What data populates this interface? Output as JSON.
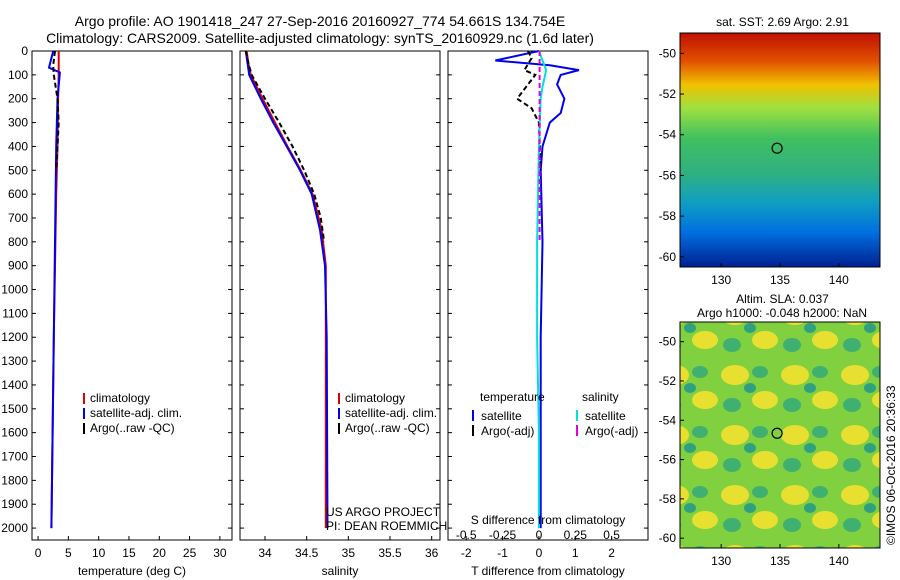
{
  "header": {
    "line1": "Argo profile: AO 1901418_247 27-Sep-2016 20160927_774 54.661S 134.754E",
    "line2": "Climatology: CARS2009. Satellite-adjusted climatology: synTS_20160929.nc (1.6d later)"
  },
  "colors": {
    "climatology": "#e00000",
    "satellite": "#0000ee",
    "argo": "#000000",
    "sal_satellite": "#00e0e0",
    "sal_argo": "#e000e0"
  },
  "chart_data": [
    {
      "type": "line",
      "id": "temperature",
      "xlabel": "temperature (deg C)",
      "ylabel": "",
      "ylim": [
        2050,
        0
      ],
      "xlim": [
        -1,
        32
      ],
      "xticks": [
        0,
        5,
        10,
        15,
        20,
        25,
        30
      ],
      "yticks": [
        0,
        100,
        200,
        300,
        400,
        500,
        600,
        700,
        800,
        900,
        1000,
        1100,
        1200,
        1300,
        1400,
        1500,
        1600,
        1700,
        1800,
        1900,
        2000
      ],
      "legend": [
        "climatology",
        "satellite-adj. clim.",
        "Argo(..raw -QC)"
      ],
      "series": [
        {
          "name": "climatology",
          "color": "#e00000",
          "x": [
            3.4,
            3.4,
            3.3,
            3.2,
            3.0,
            2.8,
            2.6,
            2.4,
            2.2
          ],
          "y": [
            0,
            100,
            200,
            400,
            600,
            900,
            1200,
            1600,
            2000
          ]
        },
        {
          "name": "satellite-adj. clim.",
          "color": "#0000ee",
          "x": [
            2.5,
            1.8,
            3.6,
            3.2,
            3.0,
            2.8,
            2.6,
            2.4,
            2.2
          ],
          "y": [
            0,
            70,
            90,
            200,
            400,
            800,
            1200,
            1600,
            2000
          ]
        },
        {
          "name": "Argo(..raw -QC)",
          "color": "#000000",
          "dash": true,
          "x": [
            2.8,
            2.5,
            2.6,
            3.2,
            3.4,
            3.2,
            3.0
          ],
          "y": [
            0,
            60,
            100,
            200,
            300,
            400,
            500
          ]
        }
      ]
    },
    {
      "type": "line",
      "id": "salinity",
      "xlabel": "salinity",
      "ylabel": "",
      "ylim": [
        2050,
        0
      ],
      "xlim": [
        33.7,
        36.1
      ],
      "xticks": [
        34,
        34.5,
        35,
        35.5,
        36
      ],
      "legend": [
        "climatology",
        "satellite-adj. clim.",
        "Argo(..raw -QC)"
      ],
      "series": [
        {
          "name": "climatology",
          "color": "#e00000",
          "x": [
            33.78,
            33.8,
            33.83,
            33.97,
            34.12,
            34.27,
            34.43,
            34.57,
            34.68,
            34.73,
            34.73,
            34.73
          ],
          "y": [
            0,
            50,
            100,
            200,
            300,
            400,
            500,
            600,
            750,
            900,
            1200,
            2000
          ]
        },
        {
          "name": "satellite-adj. clim.",
          "color": "#0000ee",
          "x": [
            33.77,
            33.79,
            33.81,
            33.95,
            34.1,
            34.26,
            34.42,
            34.56,
            34.66,
            34.72,
            34.74,
            34.75
          ],
          "y": [
            0,
            50,
            100,
            200,
            300,
            400,
            500,
            600,
            750,
            900,
            1200,
            2000
          ]
        },
        {
          "name": "Argo(..raw -QC)",
          "color": "#000000",
          "dash": true,
          "x": [
            33.77,
            33.8,
            33.84,
            34.0,
            34.17,
            34.33,
            34.47,
            34.59,
            34.67,
            34.71
          ],
          "y": [
            0,
            50,
            100,
            200,
            300,
            400,
            500,
            600,
            700,
            800
          ]
        }
      ],
      "annotation": [
        "US ARGO PROJECT",
        "PI: DEAN ROEMMICH"
      ]
    },
    {
      "type": "line",
      "id": "difference",
      "xlabel": "T difference from climatology",
      "x2label": "S difference from climatology",
      "ylim": [
        2050,
        0
      ],
      "xlim": [
        -2.5,
        3.0
      ],
      "xticks": [
        -2,
        -1,
        0,
        1,
        2
      ],
      "xticklabels": [
        "-2",
        "-1",
        "0",
        "1",
        "2"
      ],
      "x2ticks": [
        -0.5,
        -0.25,
        0,
        0.25,
        0.5
      ],
      "x2ticklabels": [
        "-0.5",
        "-0.25",
        "0",
        "0.25",
        "0.5"
      ],
      "legend_groups": [
        "temperature",
        "salinity"
      ],
      "legend": [
        "satellite",
        "Argo(-adj)",
        "satellite",
        "Argo(-adj)"
      ],
      "series": [
        {
          "name": "T satellite",
          "color": "#0000ee",
          "x": [
            0,
            -1.2,
            0.3,
            1.1,
            0.6,
            0.5,
            0.7,
            0.6,
            0.3,
            0.1,
            0.05,
            0.1,
            0.05,
            0.05
          ],
          "y": [
            0,
            40,
            60,
            80,
            100,
            140,
            200,
            260,
            300,
            400,
            500,
            800,
            1200,
            2000
          ]
        },
        {
          "name": "T Argo(-adj)",
          "color": "#000000",
          "dash": true,
          "x": [
            -0.3,
            -0.2,
            -0.4,
            -0.1,
            -0.3,
            -0.6,
            -0.2,
            0.0,
            0.05
          ],
          "y": [
            0,
            30,
            80,
            100,
            140,
            200,
            240,
            300,
            500
          ]
        },
        {
          "name": "S satellite",
          "color": "#00e0e0",
          "x": [
            0.0,
            0.2,
            0.1,
            0.05,
            0.0,
            -0.05,
            -0.05,
            0.0,
            0.0
          ],
          "y": [
            0,
            80,
            150,
            200,
            400,
            800,
            1200,
            1600,
            2000
          ]
        },
        {
          "name": "S Argo(-adj)",
          "color": "#e000e0",
          "dash": true,
          "x": [
            0.02,
            0.02,
            0.02
          ],
          "y": [
            0,
            100,
            800
          ]
        }
      ]
    },
    {
      "type": "heatmap",
      "id": "sst",
      "title": "sat. SST: 2.69 Argo: 2.91",
      "xlim": [
        126.5,
        143.5
      ],
      "ylim": [
        -60.5,
        -49
      ],
      "xticks": [
        130,
        135,
        140
      ],
      "yticks": [
        -50,
        -52,
        -54,
        -56,
        -58,
        -60
      ],
      "argo_position": [
        134.754,
        -54.661
      ]
    },
    {
      "type": "heatmap",
      "id": "sla",
      "title": "Altim. SLA: 0.037",
      "subtitle": "Argo h1000: -0.048 h2000: NaN",
      "xlim": [
        126.5,
        143.5
      ],
      "ylim": [
        -60.5,
        -49
      ],
      "xticks": [
        130,
        135,
        140
      ],
      "yticks": [
        -50,
        -52,
        -54,
        -56,
        -58,
        -60
      ],
      "argo_position": [
        134.754,
        -54.661
      ]
    }
  ],
  "credit": "©IMOS 06-Oct-2016 20:36:33"
}
